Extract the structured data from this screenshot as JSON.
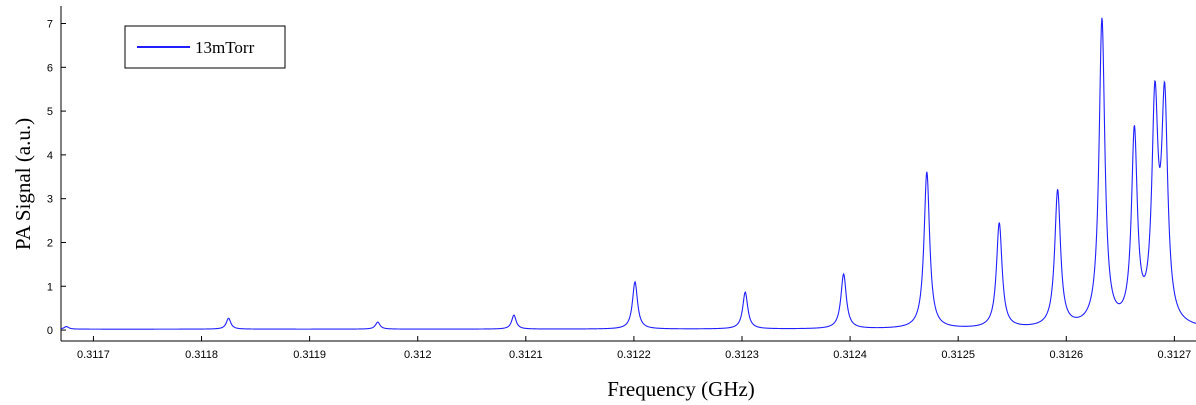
{
  "chart_data": {
    "type": "line",
    "title": "",
    "xlabel": "Frequency (GHz)",
    "ylabel": "PA Signal (a.u.)",
    "xlim": [
      0.31167,
      0.31272
    ],
    "ylim": [
      -0.25,
      7.4
    ],
    "x_ticks": [
      {
        "value": 0.3117,
        "label": "0.3117"
      },
      {
        "value": 0.3118,
        "label": "0.3118"
      },
      {
        "value": 0.3119,
        "label": "0.3119"
      },
      {
        "value": 0.312,
        "label": "0.312"
      },
      {
        "value": 0.3121,
        "label": "0.3121"
      },
      {
        "value": 0.3122,
        "label": "0.3122"
      },
      {
        "value": 0.3123,
        "label": "0.3123"
      },
      {
        "value": 0.3124,
        "label": "0.3124"
      },
      {
        "value": 0.3125,
        "label": "0.3125"
      },
      {
        "value": 0.3126,
        "label": "0.3126"
      },
      {
        "value": 0.3127,
        "label": "0.3127"
      }
    ],
    "y_ticks": [
      {
        "value": 0,
        "label": "0"
      },
      {
        "value": 1,
        "label": "1"
      },
      {
        "value": 2,
        "label": "2"
      },
      {
        "value": 3,
        "label": "3"
      },
      {
        "value": 4,
        "label": "4"
      },
      {
        "value": 5,
        "label": "5"
      },
      {
        "value": 6,
        "label": "6"
      },
      {
        "value": 7,
        "label": "7"
      }
    ],
    "legend_position": "top-left",
    "grid": false,
    "series": [
      {
        "name": "13mTorr",
        "color": "#2020ff",
        "baseline": 0.02,
        "peaks": [
          {
            "x": 0.311675,
            "y": 0.06,
            "w": 2.5e-06
          },
          {
            "x": 0.311825,
            "y": 0.25,
            "w": 2.5e-06
          },
          {
            "x": 0.311963,
            "y": 0.16,
            "w": 2.5e-06
          },
          {
            "x": 0.312089,
            "y": 0.32,
            "w": 2.5e-06
          },
          {
            "x": 0.312201,
            "y": 1.08,
            "w": 2.8e-06
          },
          {
            "x": 0.312303,
            "y": 0.84,
            "w": 2.8e-06
          },
          {
            "x": 0.312394,
            "y": 1.25,
            "w": 3e-06
          },
          {
            "x": 0.312471,
            "y": 3.58,
            "w": 3.1e-06
          },
          {
            "x": 0.312538,
            "y": 2.4,
            "w": 3.1e-06
          },
          {
            "x": 0.312592,
            "y": 3.12,
            "w": 3.2e-06
          },
          {
            "x": 0.312633,
            "y": 7.0,
            "w": 3.2e-06
          },
          {
            "x": 0.312663,
            "y": 4.35,
            "w": 3.2e-06
          },
          {
            "x": 0.312682,
            "y": 4.9,
            "w": 3.4e-06
          },
          {
            "x": 0.312691,
            "y": 4.95,
            "w": 3.4e-06
          }
        ]
      }
    ]
  }
}
